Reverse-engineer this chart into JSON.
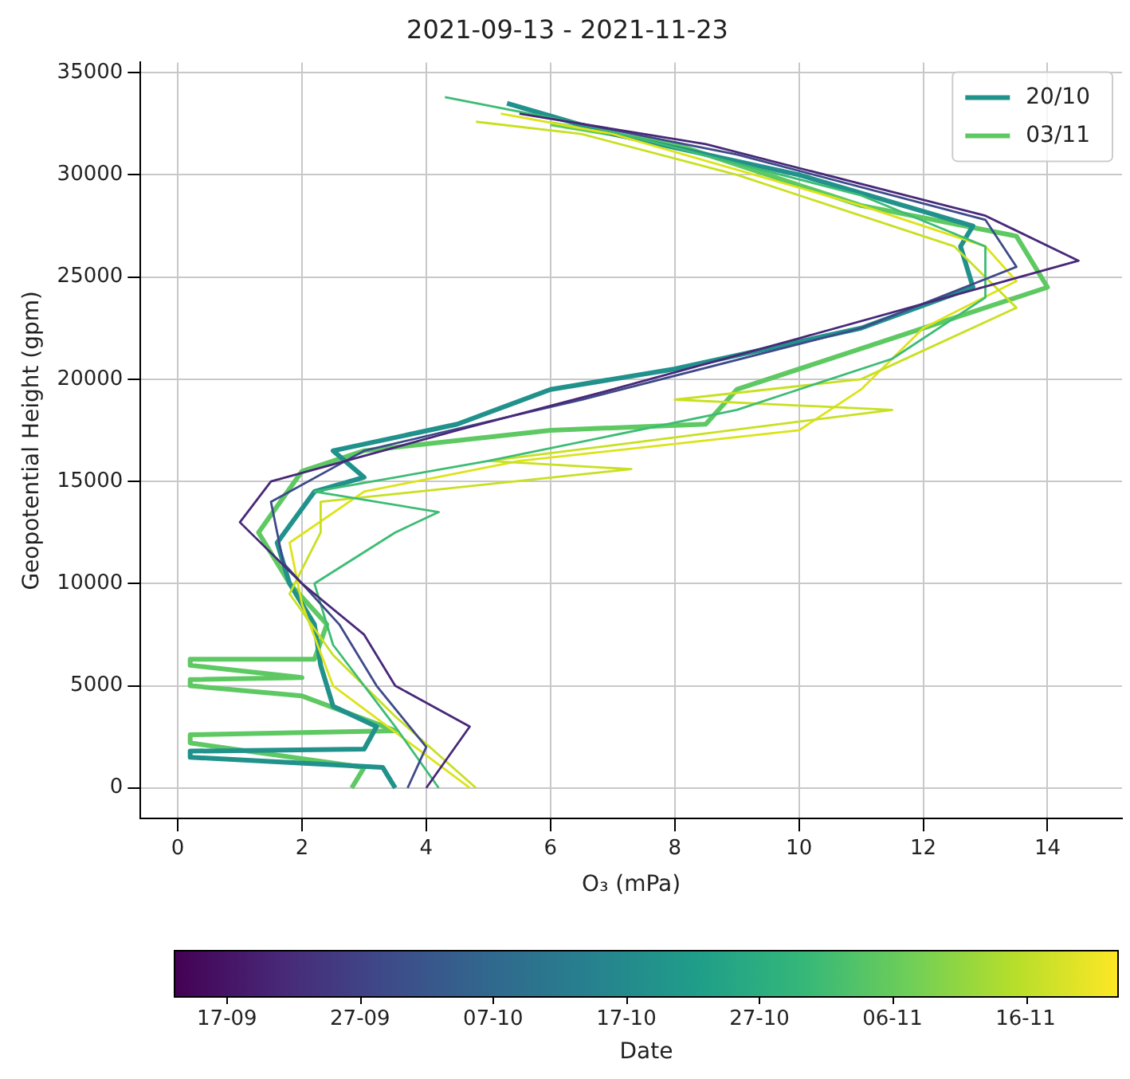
{
  "chart_data": {
    "type": "line",
    "title": "2021-09-13 - 2021-11-23",
    "xlabel": "O₃ (mPa)",
    "ylabel": "Geopotential Height (gpm)",
    "clabel": "Date",
    "xlim": [
      -0.6,
      15.2
    ],
    "ylim": [
      -1500,
      35500
    ],
    "xticks": [
      0,
      2,
      4,
      6,
      8,
      10,
      12,
      14
    ],
    "yticks": [
      0,
      5000,
      10000,
      15000,
      20000,
      25000,
      30000,
      35000
    ],
    "clim": [
      "2021-09-13",
      "2021-11-23"
    ],
    "cticks": [
      {
        "value": "2021-09-17",
        "label": "17-09"
      },
      {
        "value": "2021-09-27",
        "label": "27-09"
      },
      {
        "value": "2021-10-07",
        "label": "07-10"
      },
      {
        "value": "2021-10-17",
        "label": "17-10"
      },
      {
        "value": "2021-10-27",
        "label": "27-10"
      },
      {
        "value": "2021-11-06",
        "label": "06-11"
      },
      {
        "value": "2021-11-16",
        "label": "16-11"
      }
    ],
    "grid": true,
    "legend": "top right",
    "series": [
      {
        "color": "#482878",
        "x": [
          4,
          4.7,
          3.5,
          3,
          2,
          1,
          1.5,
          4.5,
          7,
          10,
          14.5,
          13,
          8.5,
          5.5
        ],
        "values": [
          0,
          3000,
          5000,
          7500,
          10000,
          13000,
          15000,
          17500,
          19500,
          22000,
          25800,
          28000,
          31500,
          33000
        ]
      },
      {
        "color": "#3e4a89",
        "x": [
          3.7,
          4,
          3.2,
          2.6,
          1.7,
          1.5,
          3,
          6.5,
          11,
          13.5,
          13,
          9,
          6.5
        ],
        "values": [
          0,
          2000,
          5000,
          8000,
          11000,
          14000,
          16500,
          19000,
          22500,
          25500,
          27800,
          31000,
          32500
        ]
      },
      {
        "color": "#3dbc74",
        "x": [
          4.2,
          3.5,
          2.5,
          2.2,
          3.5,
          4.2,
          2.2,
          5,
          9,
          11.5,
          13,
          13,
          11,
          6.5,
          4.3
        ],
        "values": [
          0,
          3000,
          7000,
          10000,
          12500,
          13500,
          14500,
          16000,
          18500,
          21000,
          24000,
          26500,
          29000,
          32500,
          33800
        ]
      },
      {
        "color": "#c8e020",
        "x": [
          4.8,
          3.5,
          2.5,
          1.8,
          2.3,
          2.3,
          7.3,
          5,
          11.5,
          8,
          11,
          13.5,
          12.5,
          9,
          6.5,
          4.8
        ],
        "values": [
          0,
          3500,
          6500,
          9500,
          12500,
          14000,
          15600,
          16000,
          18500,
          19000,
          20000,
          23500,
          26500,
          30000,
          32000,
          32600
        ]
      },
      {
        "color": "#dde318",
        "x": [
          4.7,
          2.5,
          2,
          1.8,
          3,
          5.5,
          10,
          11,
          12,
          13.5,
          13,
          11,
          7,
          5.2
        ],
        "values": [
          0,
          5000,
          9000,
          12000,
          14500,
          16000,
          17500,
          19500,
          22500,
          24800,
          26500,
          28500,
          32000,
          33000
        ]
      },
      {
        "name": "20/10",
        "color": "#21918c",
        "x": [
          3.5,
          3.3,
          0.2,
          0.2,
          3,
          3.2,
          2.5,
          2.3,
          2.2,
          1.8,
          1.6,
          2.2,
          3,
          2.5,
          4.5,
          6,
          8,
          11,
          12.8,
          12.6,
          12.8,
          10,
          7,
          5.3
        ],
        "values": [
          0,
          1000,
          1500,
          1800,
          1900,
          3000,
          4000,
          6000,
          8000,
          10000,
          12000,
          14500,
          15200,
          16500,
          17800,
          19500,
          20500,
          22500,
          24500,
          26500,
          27500,
          30000,
          32000,
          33500
        ]
      },
      {
        "name": "03/11",
        "color": "#5ec962",
        "x": [
          2.8,
          3,
          0.2,
          0.2,
          3.5,
          2,
          0.2,
          0.2,
          2,
          0.2,
          0.2,
          2.2,
          2.4,
          1.8,
          1.3,
          2,
          3,
          6,
          8.5,
          9,
          11.5,
          14,
          13.5,
          11,
          8,
          6
        ],
        "values": [
          0,
          1000,
          2200,
          2600,
          2800,
          4500,
          5000,
          5300,
          5400,
          6000,
          6300,
          6300,
          8000,
          10000,
          12500,
          15500,
          16500,
          17500,
          17800,
          19500,
          22000,
          24500,
          27000,
          28500,
          31500,
          32500
        ]
      }
    ]
  }
}
